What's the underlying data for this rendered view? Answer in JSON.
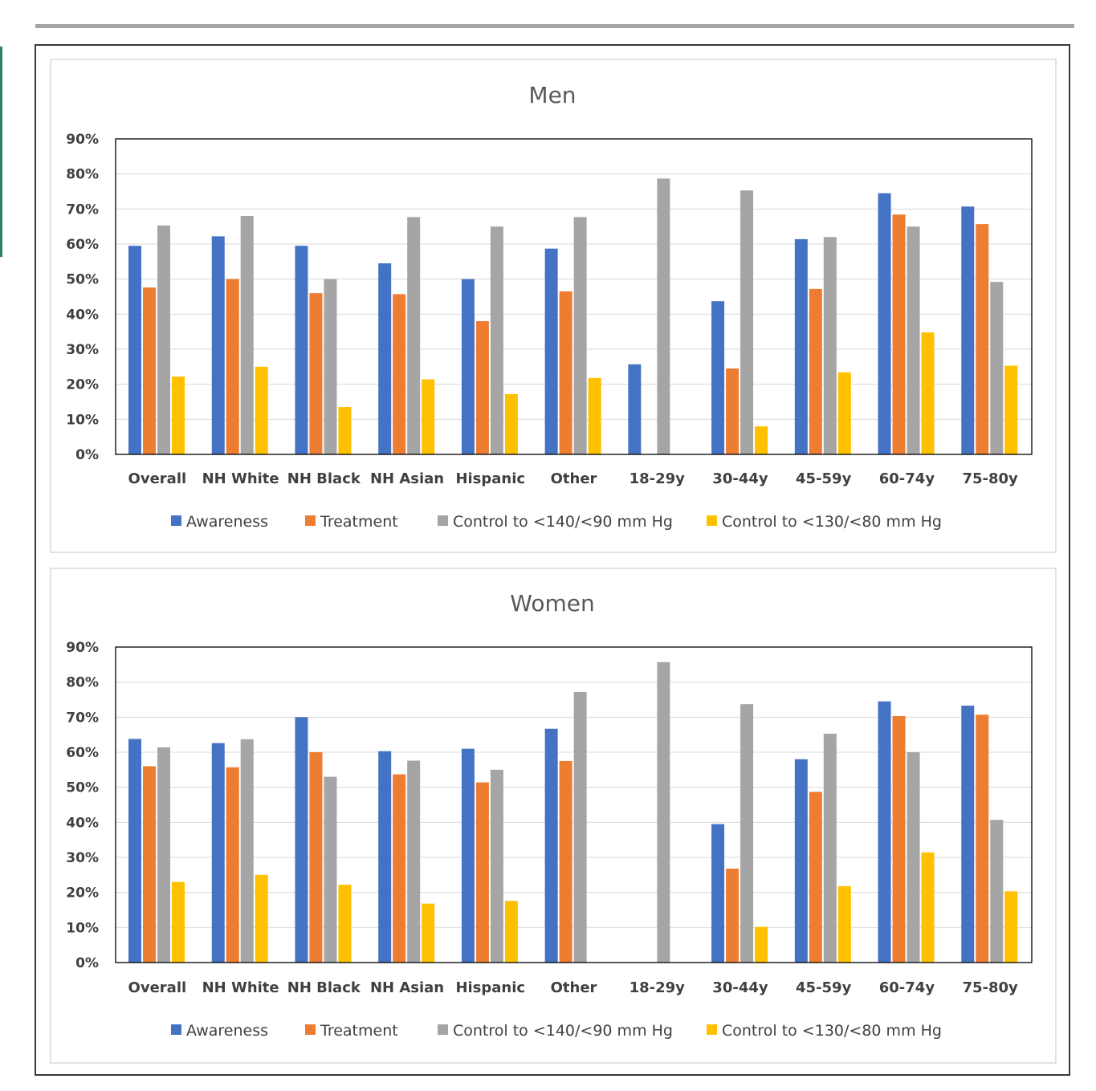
{
  "colors": {
    "awareness": "#4472c4",
    "treatment": "#ed7d31",
    "control_140_90": "#a5a5a5",
    "control_130_80": "#ffc000"
  },
  "chart_data": [
    {
      "type": "bar",
      "title": "Men",
      "categories": [
        "Overall",
        "NH White",
        "NH Black",
        "NH Asian",
        "Hispanic",
        "Other",
        "18-29y",
        "30-44y",
        "45-59y",
        "60-74y",
        "75-80y"
      ],
      "ylim": [
        0,
        90
      ],
      "yticks": [
        "0%",
        "10%",
        "20%",
        "30%",
        "40%",
        "50%",
        "60%",
        "70%",
        "80%",
        "90%"
      ],
      "grid": true,
      "legend_position": "bottom",
      "series": [
        {
          "name": "Awareness",
          "values": [
            59.5,
            62.2,
            59.5,
            54.5,
            50.0,
            58.7,
            25.7,
            43.7,
            61.4,
            74.5,
            70.7
          ]
        },
        {
          "name": "Treatment",
          "values": [
            47.6,
            50.0,
            46.0,
            45.7,
            38.0,
            46.5,
            null,
            24.5,
            47.2,
            68.4,
            65.7
          ]
        },
        {
          "name": "Control to <140/<90 mm Hg",
          "values": [
            65.3,
            68.0,
            50.0,
            67.7,
            65.0,
            67.7,
            78.7,
            75.3,
            62.0,
            65.0,
            49.2
          ]
        },
        {
          "name": "Control to <130/<80 mm Hg",
          "values": [
            22.2,
            25.0,
            13.5,
            21.4,
            17.2,
            21.8,
            null,
            8.0,
            23.4,
            34.8,
            25.3
          ]
        }
      ]
    },
    {
      "type": "bar",
      "title": "Women",
      "categories": [
        "Overall",
        "NH White",
        "NH Black",
        "NH Asian",
        "Hispanic",
        "Other",
        "18-29y",
        "30-44y",
        "45-59y",
        "60-74y",
        "75-80y"
      ],
      "ylim": [
        0,
        90
      ],
      "yticks": [
        "0%",
        "10%",
        "20%",
        "30%",
        "40%",
        "50%",
        "60%",
        "70%",
        "80%",
        "90%"
      ],
      "grid": true,
      "legend_position": "bottom",
      "series": [
        {
          "name": "Awareness",
          "values": [
            63.8,
            62.6,
            70.0,
            60.3,
            61.0,
            66.7,
            null,
            39.5,
            58.0,
            74.5,
            73.3
          ]
        },
        {
          "name": "Treatment",
          "values": [
            56.0,
            55.7,
            60.0,
            53.7,
            51.4,
            57.5,
            null,
            26.8,
            48.7,
            70.3,
            70.7
          ]
        },
        {
          "name": "Control to <140/<90 mm Hg",
          "values": [
            61.4,
            63.7,
            53.0,
            57.6,
            55.0,
            77.2,
            85.7,
            73.7,
            65.3,
            60.0,
            40.7
          ]
        },
        {
          "name": "Control to <130/<80 mm Hg",
          "values": [
            23.0,
            25.0,
            22.2,
            16.8,
            17.6,
            null,
            null,
            10.2,
            21.8,
            31.4,
            20.3
          ]
        }
      ]
    }
  ]
}
